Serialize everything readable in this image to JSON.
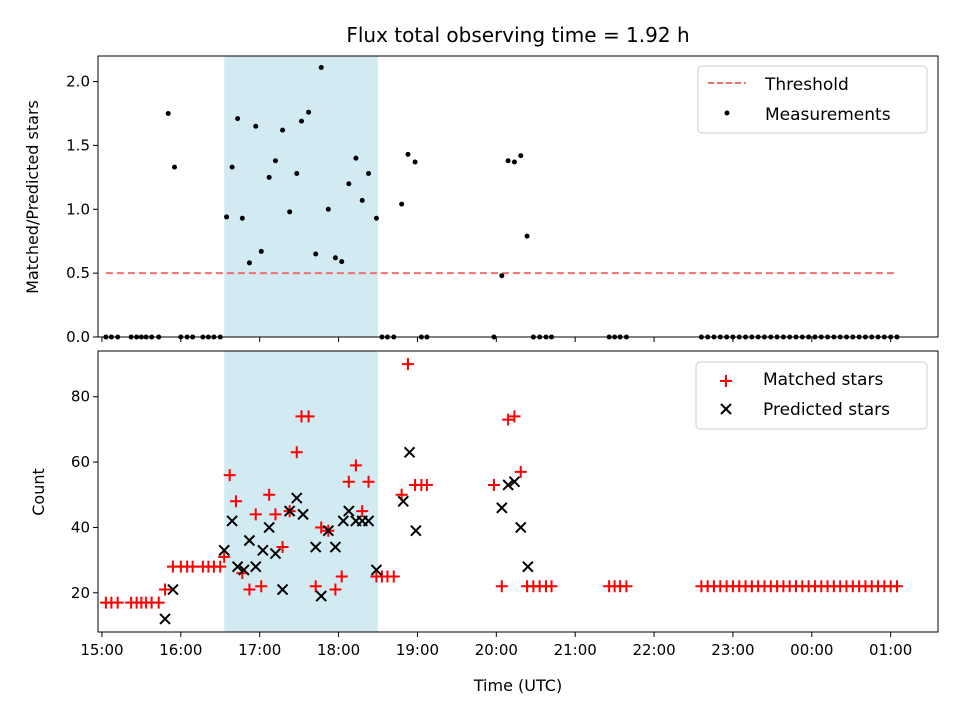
{
  "chart_data": {
    "title": "Flux total observing time = 1.92 h",
    "xlabel": "Time (UTC)",
    "x_hours": [
      15,
      16,
      17,
      18,
      19,
      20,
      21,
      22,
      23,
      24,
      25
    ],
    "x_tick_labels": [
      "15:00",
      "16:00",
      "17:00",
      "18:00",
      "19:00",
      "20:00",
      "21:00",
      "22:00",
      "23:00",
      "00:00",
      "01:00"
    ],
    "xlim": [
      14.95,
      25.6
    ],
    "highlight_span": [
      16.55,
      18.5
    ],
    "colors": {
      "span": "#add8e6",
      "matched": "#ff0000",
      "predicted": "#000000",
      "threshold": "#f07070",
      "measurement": "#000000"
    },
    "panels": [
      {
        "type": "scatter",
        "ylabel": "Matched/Predicted stars",
        "ylim": [
          0,
          2.2
        ],
        "y_ticks": [
          0.0,
          0.5,
          1.0,
          1.5,
          2.0
        ],
        "y_tick_labels": [
          "0.0",
          "0.5",
          "1.0",
          "1.5",
          "2.0"
        ],
        "threshold": {
          "name": "Threshold",
          "value": 0.5,
          "x_range": [
            15.05,
            25.05
          ]
        },
        "series": [
          {
            "name": "Measurements",
            "points": [
              [
                15.05,
                0
              ],
              [
                15.12,
                0
              ],
              [
                15.2,
                0
              ],
              [
                15.37,
                0
              ],
              [
                15.44,
                0
              ],
              [
                15.5,
                0
              ],
              [
                15.56,
                0
              ],
              [
                15.63,
                0
              ],
              [
                15.72,
                0
              ],
              [
                15.84,
                1.75
              ],
              [
                15.92,
                1.33
              ],
              [
                16.0,
                0
              ],
              [
                16.08,
                0
              ],
              [
                16.15,
                0
              ],
              [
                16.28,
                0
              ],
              [
                16.35,
                0
              ],
              [
                16.42,
                0
              ],
              [
                16.5,
                0
              ],
              [
                16.58,
                0.94
              ],
              [
                16.65,
                1.33
              ],
              [
                16.72,
                1.71
              ],
              [
                16.78,
                0.93
              ],
              [
                16.87,
                0.58
              ],
              [
                16.95,
                1.65
              ],
              [
                17.02,
                0.67
              ],
              [
                17.12,
                1.25
              ],
              [
                17.2,
                1.38
              ],
              [
                17.29,
                1.62
              ],
              [
                17.38,
                0.98
              ],
              [
                17.47,
                1.28
              ],
              [
                17.53,
                1.69
              ],
              [
                17.62,
                1.76
              ],
              [
                17.71,
                0.65
              ],
              [
                17.78,
                2.11
              ],
              [
                17.87,
                1.0
              ],
              [
                17.96,
                0.62
              ],
              [
                18.04,
                0.59
              ],
              [
                18.13,
                1.2
              ],
              [
                18.22,
                1.4
              ],
              [
                18.3,
                1.07
              ],
              [
                18.38,
                1.28
              ],
              [
                18.48,
                0.93
              ],
              [
                18.55,
                0
              ],
              [
                18.62,
                0
              ],
              [
                18.7,
                0
              ],
              [
                18.8,
                1.04
              ],
              [
                18.88,
                1.43
              ],
              [
                18.97,
                1.37
              ],
              [
                19.05,
                0
              ],
              [
                19.12,
                0
              ],
              [
                19.97,
                0
              ],
              [
                20.07,
                0.48
              ],
              [
                20.15,
                1.38
              ],
              [
                20.23,
                1.37
              ],
              [
                20.31,
                1.42
              ],
              [
                20.39,
                0.79
              ],
              [
                20.47,
                0
              ],
              [
                20.55,
                0
              ],
              [
                20.63,
                0
              ],
              [
                20.7,
                0
              ],
              [
                21.43,
                0
              ],
              [
                21.5,
                0
              ],
              [
                21.57,
                0
              ],
              [
                21.65,
                0
              ]
            ],
            "grid_zero": {
              "start": 22.6,
              "step": 0.08,
              "count": 32
            }
          }
        ]
      },
      {
        "type": "scatter",
        "ylabel": "Count",
        "ylim": [
          8,
          94
        ],
        "y_ticks": [
          20,
          40,
          60,
          80
        ],
        "y_tick_labels": [
          "20",
          "40",
          "60",
          "80"
        ],
        "series": [
          {
            "name": "Matched stars",
            "marker": "plus",
            "points": [
              [
                15.05,
                17
              ],
              [
                15.12,
                17
              ],
              [
                15.2,
                17
              ],
              [
                15.37,
                17
              ],
              [
                15.44,
                17
              ],
              [
                15.5,
                17
              ],
              [
                15.56,
                17
              ],
              [
                15.63,
                17
              ],
              [
                15.72,
                17
              ],
              [
                15.8,
                21
              ],
              [
                15.9,
                28
              ],
              [
                16.0,
                28
              ],
              [
                16.08,
                28
              ],
              [
                16.15,
                28
              ],
              [
                16.28,
                28
              ],
              [
                16.35,
                28
              ],
              [
                16.42,
                28
              ],
              [
                16.5,
                28
              ],
              [
                16.55,
                31
              ],
              [
                16.62,
                56
              ],
              [
                16.7,
                48
              ],
              [
                16.78,
                26
              ],
              [
                16.87,
                21
              ],
              [
                16.95,
                44
              ],
              [
                17.02,
                22
              ],
              [
                17.12,
                50
              ],
              [
                17.2,
                44
              ],
              [
                17.29,
                34
              ],
              [
                17.38,
                45
              ],
              [
                17.47,
                63
              ],
              [
                17.53,
                74
              ],
              [
                17.62,
                74
              ],
              [
                17.71,
                22
              ],
              [
                17.78,
                40
              ],
              [
                17.87,
                39
              ],
              [
                17.96,
                21
              ],
              [
                18.04,
                25
              ],
              [
                18.13,
                54
              ],
              [
                18.22,
                59
              ],
              [
                18.3,
                45
              ],
              [
                18.38,
                54
              ],
              [
                18.48,
                25
              ],
              [
                18.55,
                25
              ],
              [
                18.62,
                25
              ],
              [
                18.7,
                25
              ],
              [
                18.8,
                50
              ],
              [
                18.88,
                90
              ],
              [
                18.97,
                53
              ],
              [
                19.05,
                53
              ],
              [
                19.12,
                53
              ],
              [
                19.97,
                53
              ],
              [
                20.07,
                22
              ],
              [
                20.15,
                73
              ],
              [
                20.23,
                74
              ],
              [
                20.31,
                57
              ],
              [
                20.39,
                22
              ],
              [
                20.47,
                22
              ],
              [
                20.55,
                22
              ],
              [
                20.63,
                22
              ],
              [
                20.7,
                22
              ],
              [
                21.43,
                22
              ],
              [
                21.5,
                22
              ],
              [
                21.57,
                22
              ],
              [
                21.65,
                22
              ]
            ],
            "grid_value": 22,
            "grid": {
              "start": 22.6,
              "step": 0.08,
              "count": 32
            }
          },
          {
            "name": "Predicted stars",
            "marker": "x",
            "points": [
              [
                15.8,
                12
              ],
              [
                15.9,
                21
              ],
              [
                16.55,
                33
              ],
              [
                16.65,
                42
              ],
              [
                16.72,
                28
              ],
              [
                16.8,
                27
              ],
              [
                16.87,
                36
              ],
              [
                16.95,
                28
              ],
              [
                17.04,
                33
              ],
              [
                17.12,
                40
              ],
              [
                17.2,
                32
              ],
              [
                17.29,
                21
              ],
              [
                17.38,
                45
              ],
              [
                17.47,
                49
              ],
              [
                17.55,
                44
              ],
              [
                17.71,
                34
              ],
              [
                17.78,
                19
              ],
              [
                17.87,
                39
              ],
              [
                17.96,
                34
              ],
              [
                18.06,
                42
              ],
              [
                18.13,
                45
              ],
              [
                18.22,
                42
              ],
              [
                18.3,
                42
              ],
              [
                18.38,
                42
              ],
              [
                18.48,
                27
              ],
              [
                18.82,
                48
              ],
              [
                18.9,
                63
              ],
              [
                18.98,
                39
              ],
              [
                20.07,
                46
              ],
              [
                20.15,
                53
              ],
              [
                20.23,
                54
              ],
              [
                20.31,
                40
              ],
              [
                20.4,
                28
              ]
            ]
          }
        ]
      }
    ]
  }
}
